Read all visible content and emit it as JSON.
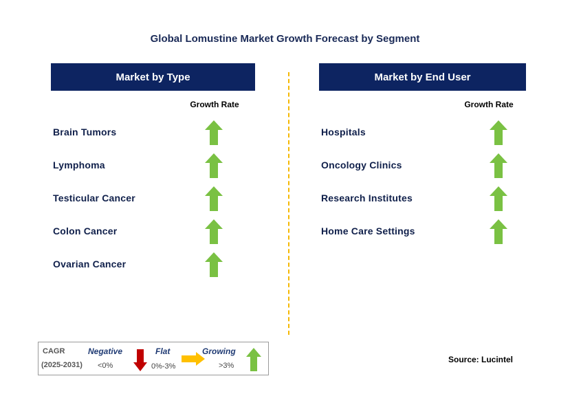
{
  "title": "Global Lomustine Market Growth Forecast by Segment",
  "chart_data": {
    "type": "table",
    "panels": [
      {
        "header": "Market by Type",
        "column_label": "Growth Rate",
        "rows": [
          {
            "label": "Brain Tumors",
            "trend": "growing"
          },
          {
            "label": "Lymphoma",
            "trend": "growing"
          },
          {
            "label": "Testicular Cancer",
            "trend": "growing"
          },
          {
            "label": "Colon Cancer",
            "trend": "growing"
          },
          {
            "label": "Ovarian Cancer",
            "trend": "growing"
          }
        ]
      },
      {
        "header": "Market by End User",
        "column_label": "Growth Rate",
        "rows": [
          {
            "label": "Hospitals",
            "trend": "growing"
          },
          {
            "label": "Oncology Clinics",
            "trend": "growing"
          },
          {
            "label": "Research Institutes",
            "trend": "growing"
          },
          {
            "label": "Home Care Settings",
            "trend": "growing"
          }
        ]
      }
    ]
  },
  "legend": {
    "cagr": "CAGR",
    "period": "(2025-2031)",
    "negative": {
      "label": "Negative",
      "range": "<0%",
      "icon": "down-arrow-icon",
      "color": "#c00000"
    },
    "flat": {
      "label": "Flat",
      "range": "0%-3%",
      "icon": "right-arrow-icon",
      "color": "#ffc000"
    },
    "growing": {
      "label": "Growing",
      "range": ">3%",
      "icon": "up-arrow-icon",
      "color": "#7ac143"
    }
  },
  "source": "Source: Lucintel",
  "colors": {
    "header_bg": "#0d2461",
    "header_text": "#ffffff",
    "divider": "#f5b800",
    "growing_arrow": "#7ac143"
  }
}
